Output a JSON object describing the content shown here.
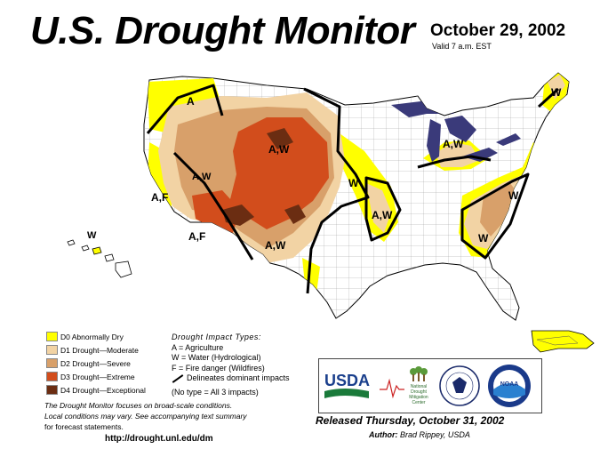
{
  "header": {
    "title": "U.S. Drought Monitor",
    "date": "October 29, 2002",
    "valid": "Valid 7 a.m. EST"
  },
  "map_labels": [
    {
      "id": "pnw",
      "text": "A"
    },
    {
      "id": "nw-rockies",
      "text": "A,W"
    },
    {
      "id": "great-basin",
      "text": "A,W"
    },
    {
      "id": "ca-north",
      "text": "A,F"
    },
    {
      "id": "ca-south",
      "text": "A,F"
    },
    {
      "id": "southwest",
      "text": "A,W"
    },
    {
      "id": "hawaii",
      "text": "W"
    },
    {
      "id": "plains",
      "text": "W"
    },
    {
      "id": "mo-ar",
      "text": "A,W"
    },
    {
      "id": "michigan",
      "text": "A,W"
    },
    {
      "id": "maine",
      "text": "W"
    },
    {
      "id": "va-nc",
      "text": "W"
    },
    {
      "id": "southeast",
      "text": "W"
    }
  ],
  "legend": {
    "items": [
      {
        "label": "D0 Abnormally Dry",
        "color": "#ffff00"
      },
      {
        "label": "D1 Drought—Moderate",
        "color": "#f2d3a4"
      },
      {
        "label": "D2 Drought—Severe",
        "color": "#d8a06a"
      },
      {
        "label": "D3 Drought—Extreme",
        "color": "#d24d1c"
      },
      {
        "label": "D4 Drought—Exceptional",
        "color": "#6b2d12"
      }
    ]
  },
  "impact_types": {
    "heading": "Drought Impact Types:",
    "agriculture": "A = Agriculture",
    "water": "W = Water (Hydrological)",
    "fire": "F = Fire danger (Wildfires)",
    "delineates": "Delineates dominant impacts",
    "no_type": "(No type = All 3 impacts)"
  },
  "note": {
    "line1": "The Drought Monitor focuses on broad-scale conditions.",
    "line2": "Local conditions may vary. See accompanying text summary",
    "line3": "for forecast statements."
  },
  "url": "http://drought.unl.edu/dm",
  "logos": {
    "usda": "USDA",
    "ndmc_line1": "National",
    "ndmc_line2": "Drought",
    "ndmc_line3": "Mitigation",
    "ndmc_line4": "Center",
    "noaa": "NOAA"
  },
  "footer": {
    "released": "Released Thursday, October 31, 2002",
    "author_label": "Author:",
    "author_name": "Brad Rippey, USDA"
  },
  "colors": {
    "water": "#3a3a7a",
    "land": "#ffffff",
    "d0": "#ffff00",
    "d1": "#f2d3a4",
    "d2": "#d8a06a",
    "d3": "#d24d1c",
    "d4": "#6b2d12"
  }
}
